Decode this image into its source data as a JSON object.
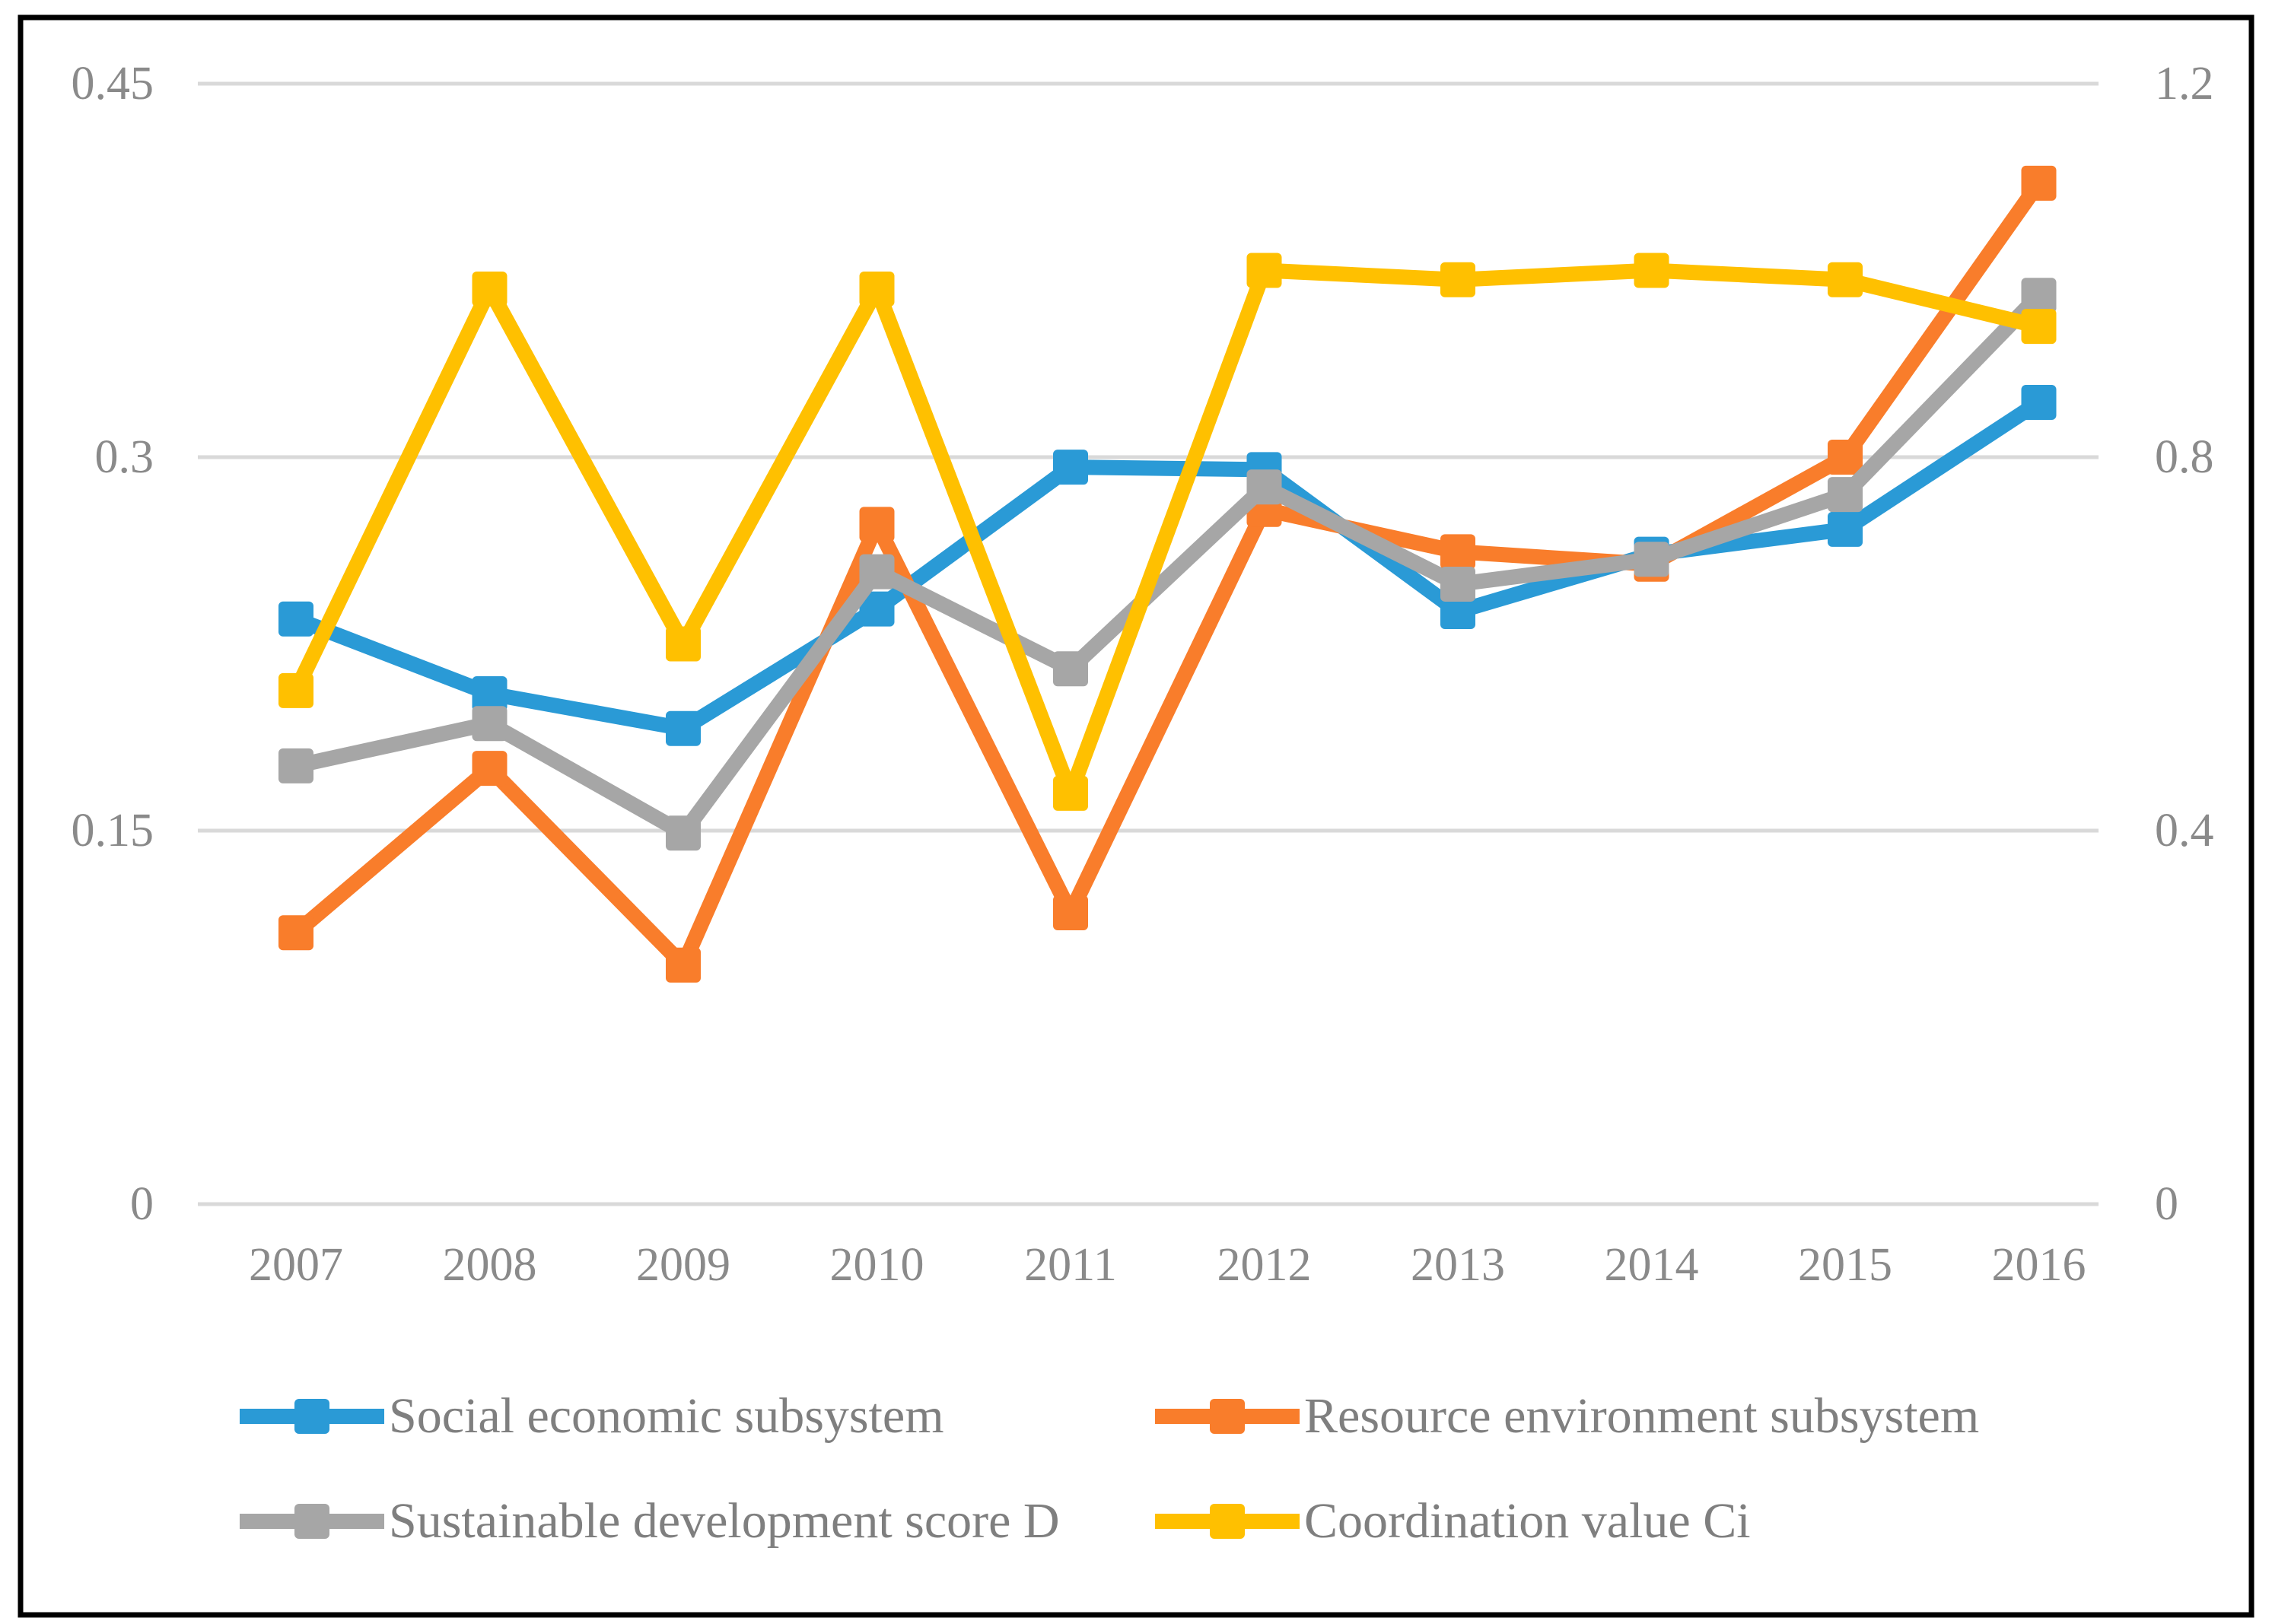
{
  "chart_data": {
    "type": "line",
    "title": "",
    "xlabel": "",
    "ylabel_left": "",
    "ylabel_right": "",
    "categories": [
      "2007",
      "2008",
      "2009",
      "2010",
      "2011",
      "2012",
      "2013",
      "2014",
      "2015",
      "2016"
    ],
    "series": [
      {
        "name": "Social economic subsystem",
        "axis": "left",
        "color": "#2A9AD6",
        "marker": "square",
        "values": [
          0.235,
          0.205,
          0.191,
          0.239,
          0.296,
          0.295,
          0.238,
          0.261,
          0.271,
          0.322
        ]
      },
      {
        "name": "Resource environment subsystem",
        "axis": "left",
        "color": "#F97D2B",
        "marker": "square",
        "values": [
          0.109,
          0.175,
          0.096,
          0.273,
          0.117,
          0.279,
          0.262,
          0.257,
          0.3,
          0.41
        ]
      },
      {
        "name": "Sustainable development score D",
        "axis": "left",
        "color": "#A6A6A6",
        "marker": "square",
        "values": [
          0.176,
          0.193,
          0.149,
          0.254,
          0.215,
          0.288,
          0.249,
          0.259,
          0.285,
          0.365
        ]
      },
      {
        "name": "Coordination value Ci",
        "axis": "right",
        "color": "#FFC000",
        "marker": "square",
        "values": [
          0.55,
          0.98,
          0.6,
          0.98,
          0.44,
          1.0,
          0.99,
          1.0,
          0.99,
          0.94
        ]
      }
    ],
    "left_axis": {
      "ticks": [
        "0.45",
        "0.3",
        "0.15",
        "0"
      ],
      "min": 0,
      "max": 0.45
    },
    "right_axis": {
      "ticks": [
        "1.2",
        "0.8",
        "0.4",
        "0"
      ],
      "min": 0,
      "max": 1.2
    },
    "grid": true,
    "gridline_color": "#D9D9D9",
    "frame_color": "#000000",
    "legend_position": "bottom"
  }
}
